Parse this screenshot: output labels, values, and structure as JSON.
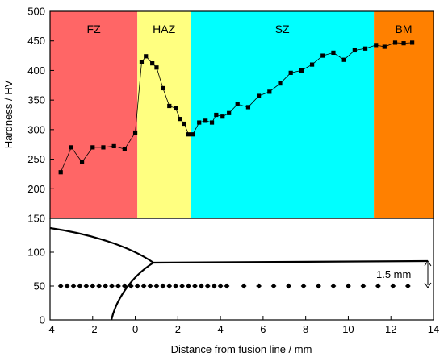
{
  "chart_data": {
    "type": "line",
    "ylabel": "Hardness / HV",
    "xlabel": "Distance from fusion line / mm",
    "xlim": [
      -4,
      14
    ],
    "ylim": [
      150,
      500
    ],
    "xticks": [
      -4,
      -2,
      0,
      2,
      4,
      6,
      8,
      10,
      12,
      14
    ],
    "yticks": [
      200,
      250,
      300,
      350,
      400,
      450,
      500
    ],
    "bottom_yticks": [
      0,
      50,
      100,
      150
    ],
    "bottom_ylim": [
      0,
      150
    ],
    "regions": [
      {
        "label": "FZ",
        "x0": -4,
        "x1": 0.1,
        "color": "#ff6666"
      },
      {
        "label": "HAZ",
        "x0": 0.1,
        "x1": 2.6,
        "color": "#ffff80"
      },
      {
        "label": "SZ",
        "x0": 2.6,
        "x1": 11.2,
        "color": "#00ffff"
      },
      {
        "label": "BM",
        "x0": 11.2,
        "x1": 14,
        "color": "#ff8000"
      }
    ],
    "series": [
      {
        "x": [
          -3.5,
          -3.0,
          -2.5,
          -2.0,
          -1.5,
          -1.0,
          -0.5,
          0.0,
          0.3,
          0.5,
          0.8,
          1.0,
          1.3,
          1.6,
          1.9,
          2.1,
          2.3,
          2.5,
          2.7,
          3.0,
          3.3,
          3.6,
          3.8,
          4.1,
          4.4,
          4.8,
          5.3,
          5.8,
          6.3,
          6.8,
          7.3,
          7.8,
          8.3,
          8.8,
          9.3,
          9.8,
          10.3,
          10.8,
          11.3,
          11.7,
          12.2,
          12.6,
          13.0
        ],
        "y": [
          228,
          270,
          245,
          270,
          270,
          272,
          267,
          295,
          414,
          424,
          412,
          405,
          370,
          340,
          336,
          318,
          310,
          292,
          292,
          312,
          315,
          312,
          325,
          322,
          328,
          343,
          338,
          357,
          364,
          378,
          396,
          400,
          410,
          425,
          430,
          418,
          434,
          437,
          443,
          440,
          447,
          446,
          447
        ]
      }
    ],
    "markers": {
      "x": [
        -3.5,
        -3.2,
        -2.9,
        -2.6,
        -2.3,
        -2.0,
        -1.7,
        -1.4,
        -1.1,
        -0.8,
        -0.5,
        -0.2,
        0.1,
        0.4,
        0.7,
        1.0,
        1.3,
        1.6,
        1.9,
        2.2,
        2.5,
        2.8,
        3.1,
        3.4,
        3.7,
        4.0,
        4.3,
        5.1,
        5.8,
        6.5,
        7.2,
        7.9,
        8.6,
        9.3,
        10.0,
        10.7,
        11.4,
        12.1,
        12.8
      ],
      "y": 50
    },
    "annotation": "1.5 mm"
  }
}
